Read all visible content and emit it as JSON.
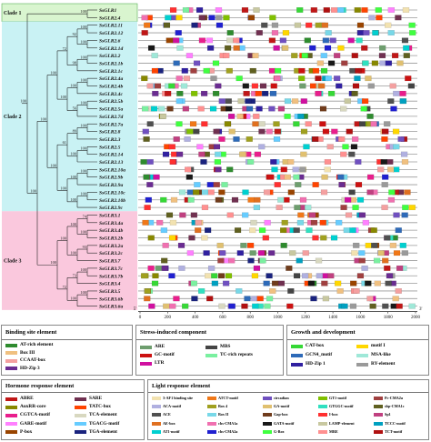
{
  "clades": [
    {
      "label": "Clade 1",
      "color": "#d9f5cf",
      "row_start": 0,
      "row_end": 1
    },
    {
      "label": "Clade 2",
      "color": "#c9f2f4",
      "row_start": 2,
      "row_end": 26
    },
    {
      "label": "Clade 3",
      "color": "#fac8dd",
      "row_start": 27,
      "row_end": 39
    }
  ],
  "genes": [
    "SsGLR1",
    "SsGLR2.4",
    "SsGLR2.11",
    "SsGLR2.12",
    "SsGLR2.6",
    "SsGLR2.1d",
    "SsGLR2.2",
    "SsGLR2.1b",
    "SsGLR2.1c",
    "SsGLR2.4a",
    "SsGLR2.4b",
    "SsGLR2.4c",
    "SsGLR2.5b",
    "SsGLR2.5a",
    "SsGLR2.7d",
    "SsGLR2.7a",
    "SsGLR2.8",
    "SsGLR2.3",
    "SsGLR2.5",
    "SsGLR2.14",
    "SsGLR2.13",
    "SsGLR2.10a",
    "SsGLR2.9b",
    "SsGLR2.9a",
    "SsGLR2.10c",
    "SsGLR2.10b",
    "SsGLR2.9c",
    "SsGLR3.1",
    "SsGLR3.4a",
    "SsGLR3.4b",
    "SsGLR3.2b",
    "SsGLR3.2a",
    "SsGLR3.2c",
    "SsGLR3.7",
    "SsGLR3.7c",
    "SsGLR3.7b",
    "SsGLR3.4",
    "SsGLR3.5",
    "SsGLR3.6b",
    "SsGLR3.6a"
  ],
  "bootstrap_values": [
    "100",
    "100",
    "100",
    "92",
    "100",
    "98",
    "72",
    "100",
    "100",
    "100",
    "56",
    "100",
    "100",
    "100",
    "89",
    "100",
    "100",
    "61",
    "100",
    "100",
    "100",
    "100",
    "100",
    "100",
    "100",
    "74",
    "100",
    "100",
    "93",
    "100",
    "100",
    "100",
    "73",
    "100",
    "100",
    "72",
    "100",
    "100",
    "100"
  ],
  "axis": {
    "ticks": [
      "0",
      "200",
      "400",
      "600",
      "800",
      "1000",
      "1200",
      "1400",
      "1600",
      "1800",
      "2000"
    ],
    "start_label": "5'",
    "end_label": "3'",
    "max": 2000
  },
  "element_colors": {
    "AT": "#2e8b2e",
    "Box3": "#f0c080",
    "CCAAT": "#f4a0a0",
    "HD3": "#6a2c91",
    "ARE": "#6e9e6e",
    "GC": "#cc1111",
    "LTR": "#d010a0",
    "MBS": "#444444",
    "TC": "#7af0a0",
    "CAT": "#36d836",
    "GCN4": "#2e6ab8",
    "HDZ1": "#3020a0",
    "motif1": "#ffd700",
    "MSA": "#9fe8d8",
    "RY": "#9a9a9a",
    "ABRE": "#c01717",
    "AuxRR": "#888800",
    "CGTCA": "#e91e8c",
    "GARE": "#ff80ff",
    "Pbox": "#994400",
    "SARE": "#703050",
    "TATC": "#ff4400",
    "TCA": "#d8d8c0",
    "TGACG": "#66ccff",
    "TGA": "#1a237e",
    "AFT1": "#f2e2b0",
    "ACA": "#b0b0e0",
    "ACE": "#505050",
    "AE": "#e07020",
    "AT1": "#00d0d0",
    "ATCT": "#f07818",
    "Box4": "#a0a020",
    "BoxII": "#78d8e8",
    "chsCMA1a": "#f070b0",
    "chsCMA2a": "#2020d0",
    "circadian": "#7050c0",
    "GA": "#e0c070",
    "Gap": "#703c1c",
    "GATA": "#181818",
    "GBox": "#40ff40",
    "GT1": "#80c000",
    "GTGGC": "#30e0c0",
    "Ibox": "#ff3030",
    "LAMP": "#c8c8a0",
    "MRE": "#ff9090",
    "PcCMA2a": "#a04040",
    "sbpCMA1c": "#606020",
    "Sp1": "#c04080",
    "TCCC": "#00a0c0",
    "TCT": "#b01010"
  },
  "legends": {
    "binding": {
      "title": "Binding site element",
      "items": [
        {
          "label": "AT-rich element",
          "key": "AT"
        },
        {
          "label": "Box III",
          "key": "Box3"
        },
        {
          "label": "CCAAT-box",
          "key": "CCAAT"
        },
        {
          "label": "HD-Zip 3",
          "key": "HD3"
        }
      ]
    },
    "stress": {
      "title": "Stress-induced component",
      "items": [
        {
          "label": "ARE",
          "key": "ARE"
        },
        {
          "label": "GC-motif",
          "key": "GC"
        },
        {
          "label": "LTR",
          "key": "LTR"
        },
        {
          "label": "MBS",
          "key": "MBS"
        },
        {
          "label": "TC-rich repeats",
          "key": "TC"
        }
      ]
    },
    "growth": {
      "title": "Growth and development",
      "items": [
        {
          "label": "CAT-box",
          "key": "CAT"
        },
        {
          "label": "GCN4_motif",
          "key": "GCN4"
        },
        {
          "label": "HD-Zip 1",
          "key": "HDZ1"
        },
        {
          "label": "motif I",
          "key": "motif1"
        },
        {
          "label": "MSA-like",
          "key": "MSA"
        },
        {
          "label": "RY-element",
          "key": "RY"
        }
      ]
    },
    "hormone": {
      "title": "Hormone response element",
      "items": [
        {
          "label": "ABRE",
          "key": "ABRE"
        },
        {
          "label": "AuxRR-core",
          "key": "AuxRR"
        },
        {
          "label": "CGTCA-motif",
          "key": "CGTCA"
        },
        {
          "label": "GARE-motif",
          "key": "GARE"
        },
        {
          "label": "P-box",
          "key": "Pbox"
        },
        {
          "label": "SARE",
          "key": "SARE"
        },
        {
          "label": "TATC-box",
          "key": "TATC"
        },
        {
          "label": "TCA-element",
          "key": "TCA"
        },
        {
          "label": "TGACG-motif",
          "key": "TGACG"
        },
        {
          "label": "TGA-element",
          "key": "TGA"
        }
      ]
    },
    "light": {
      "title": "Light response element",
      "items": [
        {
          "label": "3-AF1 binding site",
          "key": "AFT1"
        },
        {
          "label": "ACA-motif",
          "key": "ACA"
        },
        {
          "label": "ACE",
          "key": "ACE"
        },
        {
          "label": "AE-box",
          "key": "AE"
        },
        {
          "label": "AT1-motif",
          "key": "AT1"
        },
        {
          "label": "ATCT-motif",
          "key": "ATCT"
        },
        {
          "label": "Box 4",
          "key": "Box4"
        },
        {
          "label": "Box II",
          "key": "BoxII"
        },
        {
          "label": "chs-CMA1a",
          "key": "chsCMA1a"
        },
        {
          "label": "chs-CMA2a",
          "key": "chsCMA2a"
        },
        {
          "label": "circadian",
          "key": "circadian"
        },
        {
          "label": "GA-motif",
          "key": "GA"
        },
        {
          "label": "Gap-box",
          "key": "Gap"
        },
        {
          "label": "GATA-motif",
          "key": "GATA"
        },
        {
          "label": "G-Box",
          "key": "GBox"
        },
        {
          "label": "GT1-motif",
          "key": "GT1"
        },
        {
          "label": "GTGGC-motif",
          "key": "GTGGC"
        },
        {
          "label": "I-box",
          "key": "Ibox"
        },
        {
          "label": "LAMP-element",
          "key": "LAMP"
        },
        {
          "label": "MRE",
          "key": "MRE"
        },
        {
          "label": "Pc-CMA2a",
          "key": "PcCMA2a"
        },
        {
          "label": "sbp-CMA1c",
          "key": "sbpCMA1c"
        },
        {
          "label": "Sp1",
          "key": "Sp1"
        },
        {
          "label": "TCCC-motif",
          "key": "TCCC"
        },
        {
          "label": "TCT-motif",
          "key": "TCT"
        }
      ]
    }
  }
}
